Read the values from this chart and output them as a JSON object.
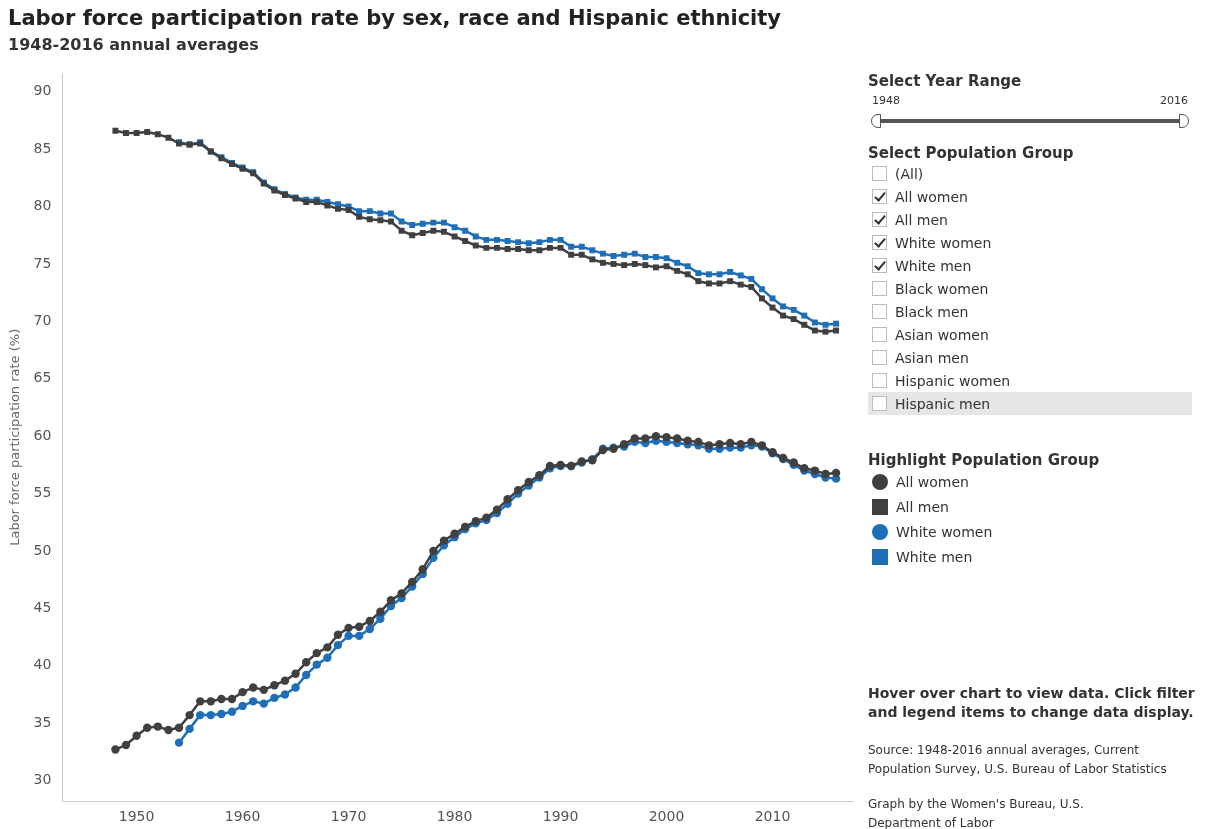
{
  "chart_data": {
    "type": "line",
    "title": "Labor force participation rate by sex, race and Hispanic ethnicity",
    "subtitle": "1948-2016 annual averages",
    "ylabel": "Labor force participation rate (%)",
    "legend_title": "Highlight Population Group",
    "legend": "right",
    "x": [
      1948,
      1949,
      1950,
      1951,
      1952,
      1953,
      1954,
      1955,
      1956,
      1957,
      1958,
      1959,
      1960,
      1961,
      1962,
      1963,
      1964,
      1965,
      1966,
      1967,
      1968,
      1969,
      1970,
      1971,
      1972,
      1973,
      1974,
      1975,
      1976,
      1977,
      1978,
      1979,
      1980,
      1981,
      1982,
      1983,
      1984,
      1985,
      1986,
      1987,
      1988,
      1989,
      1990,
      1991,
      1992,
      1993,
      1994,
      1995,
      1996,
      1997,
      1998,
      1999,
      2000,
      2001,
      2002,
      2003,
      2004,
      2005,
      2006,
      2007,
      2008,
      2009,
      2010,
      2011,
      2012,
      2013,
      2014,
      2015,
      2016
    ],
    "xlim": [
      1943,
      2017.5
    ],
    "xticks": [
      1950,
      1960,
      1970,
      1980,
      1990,
      2000,
      2010
    ],
    "ylim": [
      28.2,
      91.6
    ],
    "yticks": [
      30,
      35,
      40,
      45,
      50,
      55,
      60,
      65,
      70,
      75,
      80,
      85,
      90
    ],
    "series": [
      {
        "name": "All women",
        "color": "#404040",
        "marker": "circle",
        "values": [
          32.7,
          33.1,
          33.9,
          34.6,
          34.7,
          34.4,
          34.6,
          35.7,
          36.9,
          36.9,
          37.1,
          37.1,
          37.7,
          38.1,
          37.9,
          38.3,
          38.7,
          39.3,
          40.3,
          41.1,
          41.6,
          42.7,
          43.3,
          43.4,
          43.9,
          44.7,
          45.7,
          46.3,
          47.3,
          48.4,
          50.0,
          50.9,
          51.5,
          52.1,
          52.6,
          52.9,
          53.6,
          54.5,
          55.3,
          56.0,
          56.6,
          57.4,
          57.5,
          57.4,
          57.8,
          57.9,
          58.8,
          58.9,
          59.3,
          59.8,
          59.8,
          60.0,
          59.9,
          59.8,
          59.6,
          59.5,
          59.2,
          59.3,
          59.4,
          59.3,
          59.5,
          59.2,
          58.6,
          58.1,
          57.7,
          57.2,
          57.0,
          56.7,
          56.8
        ]
      },
      {
        "name": "All men",
        "color": "#404040",
        "marker": "square",
        "values": [
          86.6,
          86.4,
          86.4,
          86.5,
          86.3,
          86.0,
          85.5,
          85.4,
          85.5,
          84.8,
          84.2,
          83.7,
          83.3,
          82.9,
          82.0,
          81.4,
          81.0,
          80.7,
          80.4,
          80.4,
          80.1,
          79.8,
          79.7,
          79.1,
          78.9,
          78.8,
          78.7,
          77.9,
          77.5,
          77.7,
          77.9,
          77.8,
          77.4,
          77.0,
          76.6,
          76.4,
          76.4,
          76.3,
          76.3,
          76.2,
          76.2,
          76.4,
          76.4,
          75.8,
          75.8,
          75.4,
          75.1,
          75.0,
          74.9,
          75.0,
          74.9,
          74.7,
          74.8,
          74.4,
          74.1,
          73.5,
          73.3,
          73.3,
          73.5,
          73.2,
          73.0,
          72.0,
          71.2,
          70.5,
          70.2,
          69.7,
          69.2,
          69.1,
          69.2
        ]
      },
      {
        "name": "White women",
        "color": "#1f6fb8",
        "marker": "circle",
        "values": [
          null,
          null,
          null,
          null,
          null,
          null,
          33.3,
          34.5,
          35.7,
          35.7,
          35.8,
          36.0,
          36.5,
          36.9,
          36.7,
          37.2,
          37.5,
          38.1,
          39.2,
          40.1,
          40.7,
          41.8,
          42.6,
          42.6,
          43.2,
          44.1,
          45.2,
          45.9,
          46.9,
          48.0,
          49.4,
          50.5,
          51.2,
          51.9,
          52.4,
          52.7,
          53.3,
          54.1,
          55.0,
          55.7,
          56.4,
          57.2,
          57.4,
          57.4,
          57.7,
          58.0,
          58.9,
          59.0,
          59.1,
          59.5,
          59.4,
          59.6,
          59.5,
          59.4,
          59.3,
          59.2,
          58.9,
          58.9,
          59.0,
          59.0,
          59.2,
          59.1,
          58.5,
          58.0,
          57.5,
          57.0,
          56.7,
          56.4,
          56.3
        ]
      },
      {
        "name": "White men",
        "color": "#1f6fb8",
        "marker": "square",
        "values": [
          null,
          null,
          null,
          null,
          null,
          null,
          85.6,
          85.4,
          85.6,
          84.8,
          84.3,
          83.8,
          83.4,
          83.0,
          82.1,
          81.5,
          81.1,
          80.8,
          80.6,
          80.6,
          80.4,
          80.2,
          80.0,
          79.6,
          79.6,
          79.4,
          79.4,
          78.7,
          78.4,
          78.5,
          78.6,
          78.6,
          78.2,
          77.9,
          77.4,
          77.1,
          77.1,
          77.0,
          76.9,
          76.8,
          76.9,
          77.1,
          77.1,
          76.5,
          76.5,
          76.2,
          75.9,
          75.7,
          75.8,
          75.9,
          75.6,
          75.6,
          75.5,
          75.1,
          74.8,
          74.2,
          74.1,
          74.1,
          74.3,
          74.0,
          73.7,
          72.8,
          72.0,
          71.3,
          71.0,
          70.5,
          69.9,
          69.7,
          69.8
        ]
      }
    ],
    "annotations": [
      "Select Year Range",
      "1948",
      "2016",
      "Select Population Group",
      "(All)",
      "All women",
      "All men",
      "White women",
      "White men",
      "Black women",
      "Black men",
      "Asian women",
      "Asian men",
      "Hispanic women",
      "Hispanic men",
      "Hover over chart to view data. Click filter and legend items to change data display.",
      "Source: 1948-2016 annual averages, Current Population Survey, U.S. Bureau of Labor Statistics",
      "Graph by the Women's Bureau, U.S. Department of Labor"
    ]
  }
}
